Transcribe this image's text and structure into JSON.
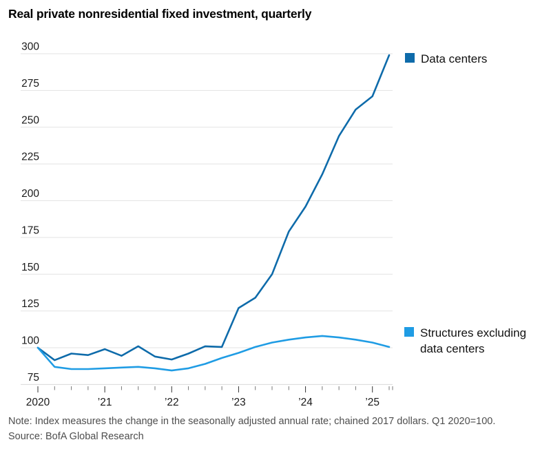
{
  "title": "Real private nonresidential fixed investment, quarterly",
  "note": "Note: Index measures the change in the seasonally adjusted annual rate; chained 2017 dollars. Q1 2020=100.",
  "source": "Source: BofA Global Research",
  "legend": {
    "data_centers": "Data centers",
    "structures": "Structures excluding data centers"
  },
  "colors": {
    "data_centers_line": "#0e6baa",
    "structures_line": "#1f9ce4",
    "gridline": "#e3e3e3",
    "bottom_axis": "#d9d9d9",
    "major_tick": "#333333",
    "minor_tick": "#777777",
    "axis_text": "#1a1a1a",
    "note_text": "#4d4d4d"
  },
  "chart_data": {
    "type": "line",
    "title": "Real private nonresidential fixed investment, quarterly",
    "x_unit": "quarter",
    "x_tick_labels": [
      "2020",
      "’21",
      "’22",
      "’23",
      "’24",
      "’25"
    ],
    "y_ticks": [
      75,
      100,
      125,
      150,
      175,
      200,
      225,
      250,
      275,
      300
    ],
    "ylim": [
      75,
      305
    ],
    "grid": "horizontal",
    "legend_position": "right",
    "quarters": [
      "2020 Q1",
      "2020 Q2",
      "2020 Q3",
      "2020 Q4",
      "2021 Q1",
      "2021 Q2",
      "2021 Q3",
      "2021 Q4",
      "2022 Q1",
      "2022 Q2",
      "2022 Q3",
      "2022 Q4",
      "2023 Q1",
      "2023 Q2",
      "2023 Q3",
      "2023 Q4",
      "2024 Q1",
      "2024 Q2",
      "2024 Q3",
      "2024 Q4",
      "2025 Q1",
      "2025 Q2"
    ],
    "series": [
      {
        "name": "Data centers",
        "color": "#0e6baa",
        "values": [
          100,
          91.5,
          96,
          95,
          99,
          94.5,
          101,
          94,
          92,
          96,
          101,
          100.5,
          127,
          134,
          150,
          179,
          196,
          218,
          244,
          262,
          271,
          299
        ]
      },
      {
        "name": "Structures excluding data centers",
        "color": "#1f9ce4",
        "values": [
          100,
          87,
          85.5,
          85.5,
          86,
          86.5,
          87,
          86,
          84.5,
          86,
          89,
          93,
          96.5,
          100.5,
          103.5,
          105.5,
          107,
          108,
          107,
          105.5,
          103.5,
          100.5
        ]
      }
    ]
  }
}
